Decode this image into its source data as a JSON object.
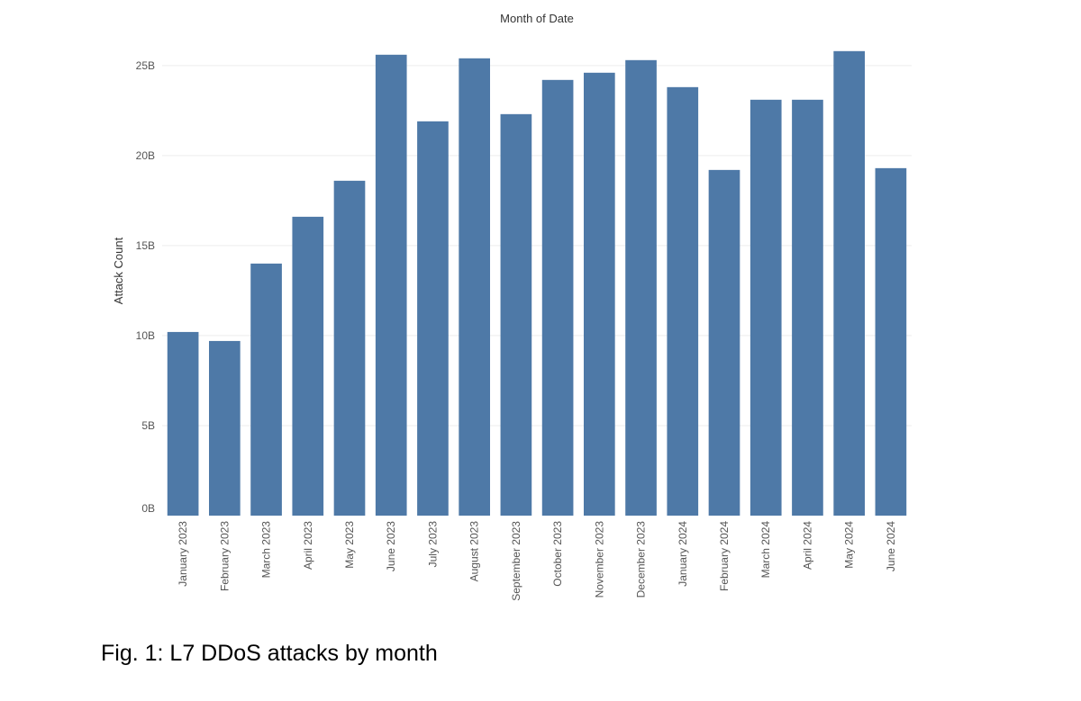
{
  "caption": "Fig. 1: L7 DDoS attacks by month",
  "chart_data": {
    "type": "bar",
    "title": "",
    "header_label": "Month of Date",
    "xlabel": "",
    "ylabel": "Attack Count",
    "ylim": [
      0,
      27000000000
    ],
    "yticks": [
      0,
      5000000000,
      10000000000,
      15000000000,
      20000000000,
      25000000000
    ],
    "ytick_labels": [
      "0B",
      "5B",
      "10B",
      "15B",
      "20B",
      "25B"
    ],
    "grid": true,
    "bar_color": "#4e79a7",
    "categories": [
      "January 2023",
      "February 2023",
      "March 2023",
      "April 2023",
      "May 2023",
      "June 2023",
      "July 2023",
      "August 2023",
      "September 2023",
      "October 2023",
      "November 2023",
      "December 2023",
      "January 2024",
      "February 2024",
      "March 2024",
      "April 2024",
      "May 2024",
      "June 2024"
    ],
    "values": [
      10200000000,
      9700000000,
      14000000000,
      16600000000,
      18600000000,
      25600000000,
      21900000000,
      25400000000,
      22300000000,
      24200000000,
      24600000000,
      25300000000,
      23800000000,
      19200000000,
      23100000000,
      23100000000,
      25800000000,
      19300000000
    ]
  }
}
